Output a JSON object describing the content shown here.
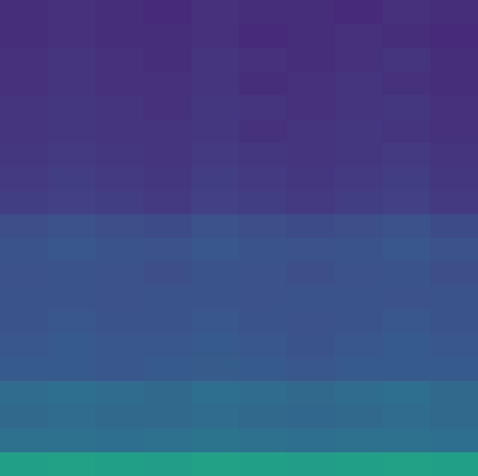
{
  "chart_data": {
    "type": "heatmap",
    "color": "viridis",
    "tick_labels": false,
    "zlim": [
      0,
      1
    ],
    "cells": [
      [
        0.13,
        0.14,
        0.13,
        0.12,
        0.14,
        0.13,
        0.13,
        0.12,
        0.14,
        0.13
      ],
      [
        0.13,
        0.14,
        0.13,
        0.13,
        0.14,
        0.12,
        0.13,
        0.14,
        0.13,
        0.12
      ],
      [
        0.14,
        0.15,
        0.14,
        0.13,
        0.15,
        0.14,
        0.13,
        0.14,
        0.15,
        0.13
      ],
      [
        0.14,
        0.15,
        0.14,
        0.14,
        0.15,
        0.13,
        0.14,
        0.15,
        0.14,
        0.13
      ],
      [
        0.15,
        0.16,
        0.15,
        0.14,
        0.16,
        0.15,
        0.14,
        0.15,
        0.16,
        0.14
      ],
      [
        0.15,
        0.16,
        0.15,
        0.15,
        0.16,
        0.14,
        0.15,
        0.16,
        0.15,
        0.14
      ],
      [
        0.16,
        0.17,
        0.16,
        0.15,
        0.17,
        0.16,
        0.15,
        0.16,
        0.17,
        0.15
      ],
      [
        0.17,
        0.18,
        0.17,
        0.16,
        0.18,
        0.17,
        0.16,
        0.17,
        0.18,
        0.16
      ],
      [
        0.18,
        0.19,
        0.18,
        0.17,
        0.19,
        0.18,
        0.17,
        0.18,
        0.19,
        0.17
      ],
      [
        0.24,
        0.25,
        0.24,
        0.23,
        0.25,
        0.24,
        0.23,
        0.24,
        0.25,
        0.23
      ],
      [
        0.26,
        0.27,
        0.26,
        0.25,
        0.27,
        0.26,
        0.25,
        0.26,
        0.27,
        0.25
      ],
      [
        0.25,
        0.26,
        0.25,
        0.24,
        0.26,
        0.25,
        0.24,
        0.25,
        0.26,
        0.24
      ],
      [
        0.26,
        0.26,
        0.25,
        0.26,
        0.26,
        0.25,
        0.26,
        0.26,
        0.25,
        0.26
      ],
      [
        0.26,
        0.27,
        0.26,
        0.26,
        0.27,
        0.26,
        0.25,
        0.26,
        0.27,
        0.26
      ],
      [
        0.27,
        0.28,
        0.27,
        0.27,
        0.28,
        0.27,
        0.26,
        0.27,
        0.28,
        0.27
      ],
      [
        0.28,
        0.28,
        0.27,
        0.28,
        0.29,
        0.28,
        0.27,
        0.28,
        0.28,
        0.28
      ],
      [
        0.35,
        0.36,
        0.35,
        0.34,
        0.36,
        0.35,
        0.34,
        0.35,
        0.36,
        0.34
      ],
      [
        0.34,
        0.35,
        0.34,
        0.34,
        0.35,
        0.34,
        0.33,
        0.34,
        0.35,
        0.34
      ],
      [
        0.37,
        0.37,
        0.36,
        0.37,
        0.38,
        0.37,
        0.36,
        0.37,
        0.37,
        0.36
      ],
      [
        0.56,
        0.57,
        0.56,
        0.55,
        0.57,
        0.56,
        0.55,
        0.56,
        0.57,
        0.56
      ]
    ]
  }
}
